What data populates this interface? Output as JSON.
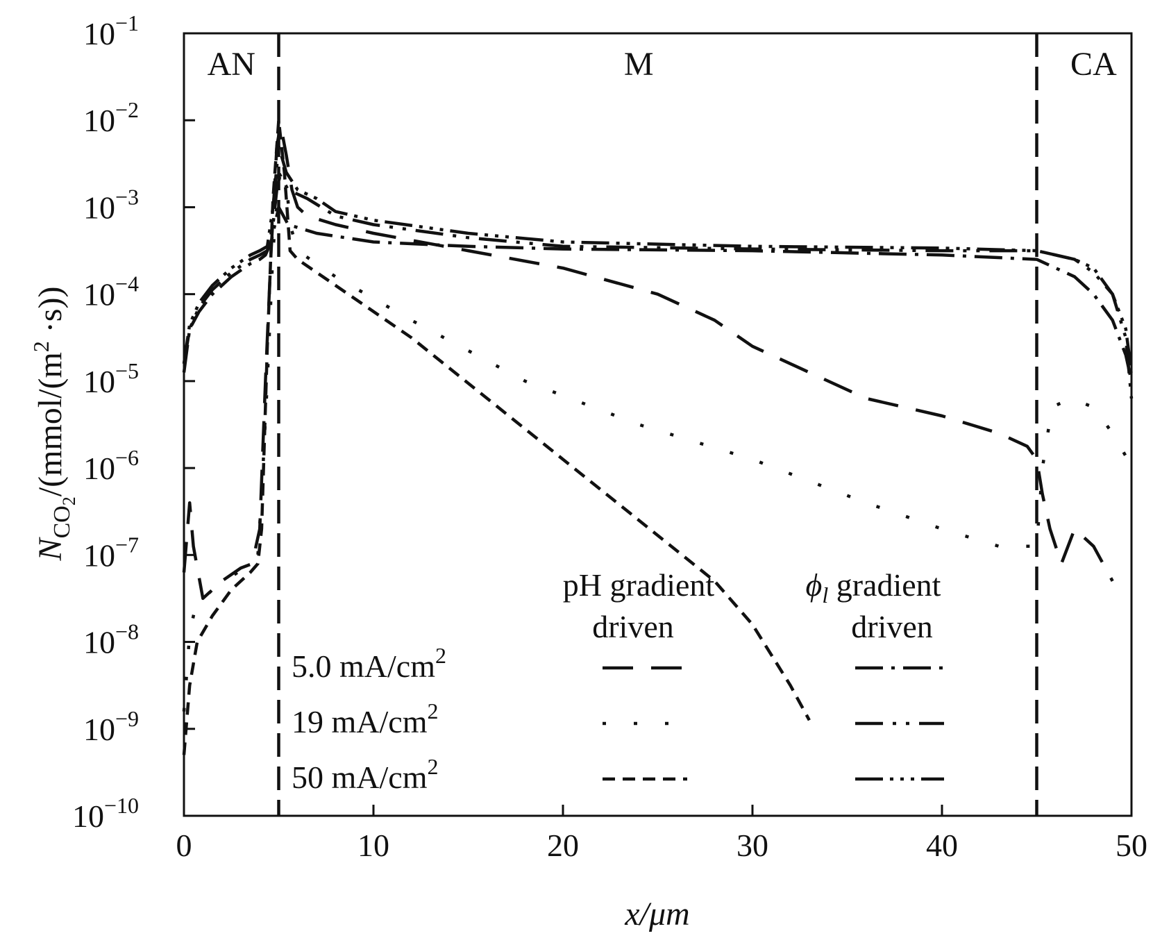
{
  "chart_data": {
    "type": "line",
    "title": "",
    "xlabel": "x/μm",
    "ylabel_prefix": "N",
    "ylabel_subscript": "CO",
    "ylabel_subsubscript": "2",
    "ylabel_rest": "/(mmol/(m",
    "ylabel_sup": "2",
    "ylabel_end": " ·s))",
    "x_ticks": [
      "0",
      "10",
      "20",
      "30",
      "40",
      "50"
    ],
    "x_tick_values": [
      0,
      10,
      20,
      30,
      40,
      50
    ],
    "y_ticks": [
      {
        "base": "10",
        "exp": "−1",
        "value": -1
      },
      {
        "base": "10",
        "exp": "−2",
        "value": -2
      },
      {
        "base": "10",
        "exp": "−3",
        "value": -3
      },
      {
        "base": "10",
        "exp": "−4",
        "value": -4
      },
      {
        "base": "10",
        "exp": "−5",
        "value": -5
      },
      {
        "base": "10",
        "exp": "−6",
        "value": -6
      },
      {
        "base": "10",
        "exp": "−7",
        "value": -7
      },
      {
        "base": "10",
        "exp": "−8",
        "value": -8
      },
      {
        "base": "10",
        "exp": "−9",
        "value": -9
      },
      {
        "base": "10",
        "exp": "−10",
        "value": -10
      }
    ],
    "xlim": [
      0,
      50
    ],
    "ylim_log10": [
      -10,
      -1
    ],
    "grid": false,
    "boundaries_x": [
      5,
      45
    ],
    "regions": [
      {
        "label": "AN",
        "x": 2.5
      },
      {
        "label": "M",
        "x": 24
      },
      {
        "label": "CA",
        "x": 48
      }
    ],
    "legend": {
      "col1_header_line1": "pH gradient",
      "col1_header_line2": "driven",
      "col2_header_symbol": "ϕ",
      "col2_header_subscript": "l",
      "col2_header_rest": " gradient",
      "col2_header_line2": "driven",
      "rows": [
        {
          "value": "5.0 mA/cm",
          "sup": "2"
        },
        {
          "value": "19 mA/cm",
          "sup": "2"
        },
        {
          "value": "50 mA/cm",
          "sup": "2"
        }
      ]
    },
    "series": [
      {
        "name": "pH gradient driven 5.0 mA/cm2",
        "style": "dash",
        "points": [
          [
            0,
            -7.2
          ],
          [
            0.3,
            -6.4
          ],
          [
            0.5,
            -6.9
          ],
          [
            1.0,
            -7.5
          ],
          [
            2.0,
            -7.3
          ],
          [
            3.0,
            -7.15
          ],
          [
            3.6,
            -7.1
          ],
          [
            3.8,
            -6.9
          ],
          [
            4.0,
            -6.7
          ],
          [
            4.3,
            -5.0
          ],
          [
            4.6,
            -3.5
          ],
          [
            4.9,
            -2.3
          ],
          [
            5.1,
            -2.05
          ],
          [
            5.4,
            -2.4
          ],
          [
            5.7,
            -2.8
          ],
          [
            6.0,
            -3.0
          ],
          [
            6.5,
            -3.1
          ],
          [
            8,
            -3.2
          ],
          [
            10,
            -3.3
          ],
          [
            15,
            -3.5
          ],
          [
            20,
            -3.7
          ],
          [
            25,
            -4.0
          ],
          [
            28,
            -4.3
          ],
          [
            30,
            -4.6
          ],
          [
            33,
            -4.9
          ],
          [
            36,
            -5.2
          ],
          [
            40,
            -5.4
          ],
          [
            43,
            -5.6
          ],
          [
            44.5,
            -5.75
          ],
          [
            45.0,
            -5.9
          ],
          [
            45.3,
            -6.3
          ],
          [
            45.7,
            -6.7
          ],
          [
            46.3,
            -7.1
          ],
          [
            47.0,
            -6.7
          ],
          [
            48.0,
            -6.9
          ],
          [
            49.0,
            -7.3
          ]
        ]
      },
      {
        "name": "pH gradient driven 19 mA/cm2",
        "style": "dot",
        "points": [
          [
            0,
            -8.8
          ],
          [
            0.3,
            -7.9
          ],
          [
            0.6,
            -7.6
          ],
          [
            1.5,
            -7.4
          ],
          [
            2.5,
            -7.25
          ],
          [
            3.5,
            -7.1
          ],
          [
            3.9,
            -7.0
          ],
          [
            4.1,
            -6.3
          ],
          [
            4.4,
            -5.0
          ],
          [
            4.7,
            -3.5
          ],
          [
            5.0,
            -2.7
          ],
          [
            5.3,
            -2.45
          ],
          [
            5.6,
            -3.2
          ],
          [
            6.0,
            -3.5
          ],
          [
            8,
            -3.8
          ],
          [
            12,
            -4.3
          ],
          [
            18,
            -5.0
          ],
          [
            24,
            -5.5
          ],
          [
            30,
            -5.9
          ],
          [
            36,
            -6.4
          ],
          [
            40,
            -6.7
          ],
          [
            43,
            -6.9
          ],
          [
            45.0,
            -6.9
          ],
          [
            45.3,
            -6.0
          ],
          [
            45.8,
            -5.3
          ],
          [
            46.8,
            -5.2
          ],
          [
            48.0,
            -5.3
          ],
          [
            49.0,
            -5.6
          ],
          [
            49.8,
            -5.9
          ]
        ]
      },
      {
        "name": "pH gradient driven 50 mA/cm2",
        "style": "shortdash",
        "points": [
          [
            0,
            -9.3
          ],
          [
            0.3,
            -8.5
          ],
          [
            0.7,
            -8.0
          ],
          [
            1.5,
            -7.7
          ],
          [
            2.5,
            -7.4
          ],
          [
            3.5,
            -7.2
          ],
          [
            3.9,
            -7.1
          ],
          [
            4.1,
            -6.7
          ],
          [
            4.4,
            -4.6
          ],
          [
            4.7,
            -2.9
          ],
          [
            5.0,
            -2.0
          ],
          [
            5.3,
            -2.6
          ],
          [
            5.6,
            -3.5
          ],
          [
            6.0,
            -3.6
          ],
          [
            8,
            -3.9
          ],
          [
            12,
            -4.5
          ],
          [
            16,
            -5.2
          ],
          [
            20,
            -5.9
          ],
          [
            24,
            -6.6
          ],
          [
            28,
            -7.3
          ],
          [
            30,
            -7.8
          ],
          [
            32,
            -8.5
          ],
          [
            33,
            -8.9
          ]
        ]
      },
      {
        "name": "phi_l gradient driven 5.0 mA/cm2",
        "style": "dashdot",
        "points": [
          [
            0,
            -4.9
          ],
          [
            0.3,
            -4.4
          ],
          [
            0.8,
            -4.2
          ],
          [
            1.5,
            -4.0
          ],
          [
            2.5,
            -3.8
          ],
          [
            3.5,
            -3.65
          ],
          [
            4.0,
            -3.6
          ],
          [
            4.3,
            -3.55
          ],
          [
            4.6,
            -3.4
          ],
          [
            5.0,
            -3.0
          ],
          [
            5.5,
            -3.2
          ],
          [
            7,
            -3.3
          ],
          [
            10,
            -3.4
          ],
          [
            15,
            -3.45
          ],
          [
            20,
            -3.48
          ],
          [
            30,
            -3.5
          ],
          [
            40,
            -3.55
          ],
          [
            45.0,
            -3.6
          ],
          [
            46,
            -3.7
          ],
          [
            47,
            -3.8
          ],
          [
            48,
            -4.0
          ],
          [
            49,
            -4.3
          ],
          [
            49.7,
            -4.7
          ],
          [
            50,
            -5.0
          ]
        ]
      },
      {
        "name": "phi_l gradient driven 19 mA/cm2",
        "style": "dashdotdot",
        "points": [
          [
            0,
            -4.8
          ],
          [
            0.3,
            -4.4
          ],
          [
            0.8,
            -4.15
          ],
          [
            1.5,
            -3.95
          ],
          [
            2.5,
            -3.75
          ],
          [
            3.5,
            -3.6
          ],
          [
            4.0,
            -3.55
          ],
          [
            4.4,
            -3.5
          ],
          [
            4.7,
            -3.2
          ],
          [
            5.0,
            -2.6
          ],
          [
            5.5,
            -2.8
          ],
          [
            6.5,
            -2.9
          ],
          [
            8,
            -3.1
          ],
          [
            10,
            -3.2
          ],
          [
            15,
            -3.35
          ],
          [
            20,
            -3.45
          ],
          [
            30,
            -3.48
          ],
          [
            40,
            -3.5
          ],
          [
            45.0,
            -3.5
          ],
          [
            46,
            -3.55
          ],
          [
            47,
            -3.6
          ],
          [
            48,
            -3.75
          ],
          [
            49,
            -4.0
          ],
          [
            49.7,
            -4.5
          ],
          [
            50,
            -5.2
          ]
        ]
      },
      {
        "name": "phi_l gradient driven 50 mA/cm2",
        "style": "dashdotdotdot",
        "points": [
          [
            0,
            -4.8
          ],
          [
            0.3,
            -4.35
          ],
          [
            0.8,
            -4.1
          ],
          [
            1.5,
            -3.9
          ],
          [
            2.5,
            -3.7
          ],
          [
            3.5,
            -3.55
          ],
          [
            4.0,
            -3.5
          ],
          [
            4.4,
            -3.45
          ],
          [
            4.7,
            -3.0
          ],
          [
            5.0,
            -2.3
          ],
          [
            5.4,
            -2.6
          ],
          [
            6.0,
            -2.8
          ],
          [
            7,
            -2.9
          ],
          [
            8,
            -3.05
          ],
          [
            10,
            -3.15
          ],
          [
            15,
            -3.3
          ],
          [
            20,
            -3.4
          ],
          [
            30,
            -3.45
          ],
          [
            40,
            -3.47
          ],
          [
            45.0,
            -3.5
          ],
          [
            46,
            -3.55
          ],
          [
            47,
            -3.6
          ],
          [
            48,
            -3.7
          ],
          [
            49,
            -4.0
          ],
          [
            49.7,
            -4.4
          ],
          [
            50,
            -4.9
          ]
        ]
      }
    ]
  }
}
